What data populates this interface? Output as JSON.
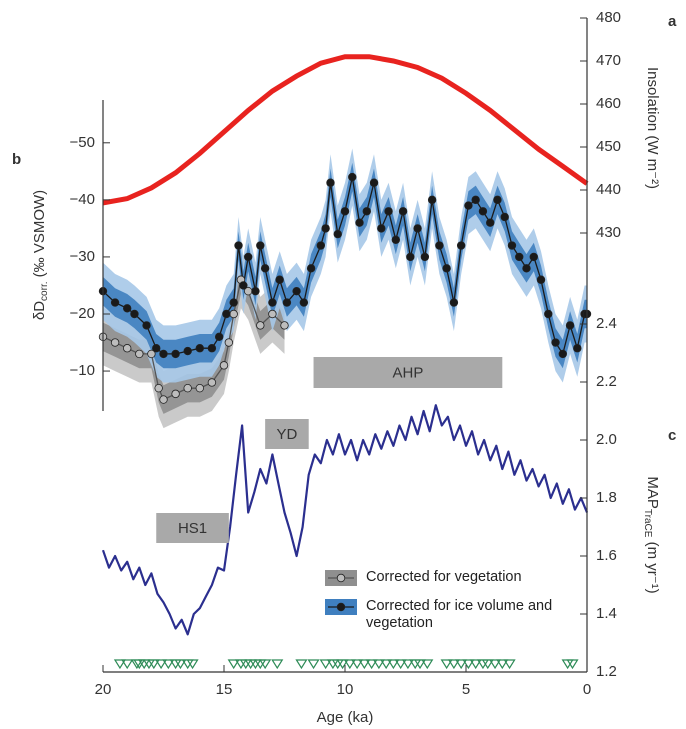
{
  "chart_data": {
    "type": "line",
    "x_label": "Age (ka)",
    "xlim": [
      20,
      0
    ],
    "xticks": [
      20,
      15,
      10,
      5,
      0
    ],
    "insolation": {
      "letter": "a",
      "label": "Insolation (W m⁻²)",
      "ylim": [
        425,
        480
      ],
      "yticks": [
        430,
        440,
        450,
        460,
        470,
        480
      ],
      "series": [
        {
          "color": "#e8231f",
          "x": [
            20,
            19,
            18,
            17,
            16,
            15,
            14,
            13,
            12,
            11,
            10,
            9,
            8,
            7,
            6,
            5,
            4,
            3,
            2,
            1,
            0
          ],
          "values": [
            437,
            438,
            440.5,
            444,
            448.5,
            453.5,
            458.5,
            463,
            466.5,
            469.5,
            471,
            471,
            470,
            468.5,
            466,
            462.5,
            458.5,
            454,
            449.5,
            445.5,
            441.5
          ]
        }
      ]
    },
    "deltaD": {
      "letter": "b",
      "label_main": "δD",
      "label_sub": "corr.",
      "label_rest": " (‰ VSMOW)",
      "ylim": [
        -57.5,
        -3
      ],
      "yticks": [
        {
          "value": -50,
          "label": "−50"
        },
        {
          "value": -40,
          "label": "−40"
        },
        {
          "value": -30,
          "label": "−30"
        },
        {
          "value": -20,
          "label": "−20"
        },
        {
          "value": -10,
          "label": "−10"
        }
      ],
      "series": [
        {
          "name": "Corrected for vegetation",
          "color": "#555555",
          "marker_fill": "#bdbdbd",
          "band_colors": [
            "#c4c4c4",
            "#8f8f8f"
          ],
          "bands": [
            5,
            2.5
          ],
          "x": [
            20,
            19.5,
            19,
            18.5,
            18,
            17.7,
            17.5,
            17,
            16.5,
            16,
            15.5,
            15,
            14.8,
            14.6,
            14.3,
            14,
            13.5,
            13,
            12.5
          ],
          "values": [
            -16,
            -15,
            -14,
            -13,
            -13,
            -7,
            -5,
            -6,
            -7,
            -7,
            -8,
            -11,
            -15,
            -20,
            -26,
            -24,
            -18,
            -20,
            -18
          ]
        },
        {
          "name": "Corrected for ice volume and vegetation",
          "color": "#1a1a1a",
          "marker_fill": "#1a1a1a",
          "band_colors": [
            "#a6c8e8",
            "#3f7fbf"
          ],
          "bands": [
            5,
            2.5
          ],
          "x": [
            20,
            19.5,
            19,
            18.7,
            18.2,
            17.8,
            17.5,
            17,
            16.5,
            16,
            15.5,
            15.2,
            14.9,
            14.6,
            14.4,
            14.2,
            14,
            13.7,
            13.5,
            13.3,
            13,
            12.7,
            12.4,
            12,
            11.7,
            11.4,
            11,
            10.8,
            10.6,
            10.3,
            10,
            9.7,
            9.4,
            9.1,
            8.8,
            8.5,
            8.2,
            7.9,
            7.6,
            7.3,
            7,
            6.7,
            6.4,
            6.1,
            5.8,
            5.5,
            5.2,
            4.9,
            4.6,
            4.3,
            4,
            3.7,
            3.4,
            3.1,
            2.8,
            2.5,
            2.2,
            1.9,
            1.6,
            1.3,
            1,
            0.7,
            0.4,
            0.1,
            0
          ],
          "values": [
            -24,
            -22,
            -21,
            -20,
            -18,
            -14,
            -13,
            -13,
            -13.5,
            -14,
            -14,
            -16,
            -20,
            -22,
            -32,
            -25,
            -30,
            -24,
            -32,
            -28,
            -22,
            -26,
            -22,
            -24,
            -22,
            -28,
            -32,
            -35,
            -43,
            -34,
            -38,
            -44,
            -36,
            -38,
            -43,
            -35,
            -38,
            -33,
            -38,
            -30,
            -35,
            -30,
            -40,
            -32,
            -28,
            -22,
            -32,
            -39,
            -40,
            -38,
            -36,
            -40,
            -37,
            -32,
            -30,
            -28,
            -30,
            -26,
            -20,
            -15,
            -13,
            -18,
            -14,
            -20,
            -20
          ]
        }
      ]
    },
    "map": {
      "letter": "c",
      "label_main": "MAP",
      "label_sub": "TraCE",
      "label_rest": " (m yr⁻¹)",
      "ylim": [
        1.2,
        2.45
      ],
      "yticks": [
        1.2,
        1.4,
        1.6,
        1.8,
        {
          "value": 2,
          "label": "2.0"
        },
        2.2,
        2.4
      ],
      "series": [
        {
          "color": "#2b2f8f",
          "x": [
            20,
            19.75,
            19.5,
            19.25,
            19,
            18.75,
            18.5,
            18.25,
            18,
            17.75,
            17.5,
            17.25,
            17,
            16.75,
            16.5,
            16.25,
            16,
            15.75,
            15.5,
            15.25,
            15,
            14.75,
            14.5,
            14.25,
            14,
            13.75,
            13.5,
            13.25,
            13,
            12.75,
            12.5,
            12.25,
            12,
            11.75,
            11.5,
            11.25,
            11,
            10.75,
            10.5,
            10.25,
            10,
            9.75,
            9.5,
            9.25,
            9,
            8.75,
            8.5,
            8.25,
            8,
            7.75,
            7.5,
            7.25,
            7,
            6.75,
            6.5,
            6.25,
            6,
            5.75,
            5.5,
            5.25,
            5,
            4.75,
            4.5,
            4.25,
            4,
            3.75,
            3.5,
            3.25,
            3,
            2.75,
            2.5,
            2.25,
            2,
            1.75,
            1.5,
            1.25,
            1,
            0.75,
            0.5,
            0.25,
            0
          ],
          "values": [
            1.62,
            1.56,
            1.6,
            1.55,
            1.58,
            1.52,
            1.56,
            1.5,
            1.54,
            1.47,
            1.44,
            1.4,
            1.35,
            1.38,
            1.33,
            1.4,
            1.42,
            1.46,
            1.5,
            1.56,
            1.55,
            1.7,
            1.88,
            2.05,
            1.75,
            1.82,
            1.9,
            1.85,
            1.95,
            1.85,
            1.75,
            1.68,
            1.6,
            1.7,
            1.88,
            1.95,
            1.92,
            2.0,
            1.95,
            2.02,
            1.95,
            2.0,
            1.93,
            2.0,
            1.95,
            2.02,
            1.97,
            2.03,
            1.98,
            2.05,
            2.0,
            2.08,
            2.02,
            2.1,
            2.03,
            2.12,
            2.05,
            2.08,
            2.0,
            2.05,
            1.98,
            2.03,
            1.95,
            2.0,
            1.93,
            1.98,
            1.9,
            1.96,
            1.88,
            1.93,
            1.86,
            1.9,
            1.84,
            1.88,
            1.8,
            1.85,
            1.78,
            1.83,
            1.76,
            1.8,
            1.75
          ]
        }
      ]
    },
    "periods": [
      {
        "label": "AHP",
        "start": 11.3,
        "end": 3.5
      },
      {
        "label": "YD",
        "start": 13.3,
        "end": 11.5
      },
      {
        "label": "HS1",
        "start": 17.8,
        "end": 14.8
      }
    ],
    "dating_points": {
      "color": "#2e8b57",
      "x": [
        19.3,
        19.0,
        18.6,
        18.5,
        18.3,
        18.1,
        17.9,
        17.6,
        17.3,
        17.0,
        16.8,
        16.5,
        16.3,
        14.6,
        14.3,
        14.1,
        13.9,
        13.7,
        13.5,
        13.3,
        12.8,
        11.8,
        11.3,
        10.8,
        10.5,
        10.3,
        10.1,
        9.8,
        9.5,
        9.2,
        8.9,
        8.6,
        8.3,
        8.0,
        7.7,
        7.4,
        7.1,
        6.9,
        6.6,
        5.8,
        5.5,
        5.2,
        4.9,
        4.6,
        4.3,
        4.1,
        3.8,
        3.5,
        3.2,
        0.8,
        0.6
      ]
    }
  }
}
